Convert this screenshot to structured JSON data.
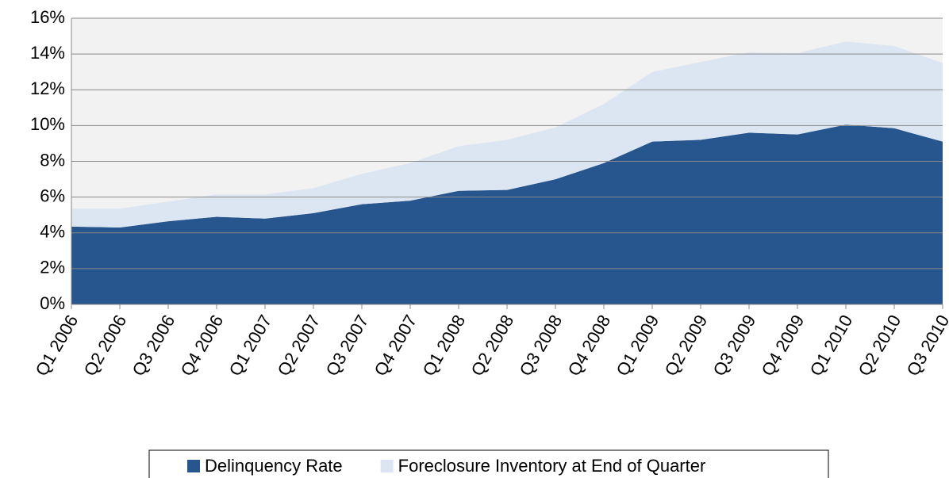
{
  "chart_data": {
    "type": "stacked_area",
    "categories": [
      "Q1 2006",
      "Q2 2006",
      "Q3 2006",
      "Q4 2006",
      "Q1 2007",
      "Q2 2007",
      "Q3 2007",
      "Q4 2007",
      "Q1 2008",
      "Q2 2008",
      "Q3 2008",
      "Q4 2008",
      "Q1 2009",
      "Q2 2009",
      "Q3 2009",
      "Q4 2009",
      "Q1 2010",
      "Q2 2010",
      "Q3 2010"
    ],
    "series": [
      {
        "name": "Delinquency Rate",
        "color": "#27568f",
        "values": [
          4.35,
          4.3,
          4.65,
          4.9,
          4.8,
          5.1,
          5.6,
          5.8,
          6.35,
          6.4,
          7.0,
          7.9,
          9.1,
          9.2,
          9.6,
          9.5,
          10.05,
          9.85,
          9.1
        ]
      },
      {
        "name": "Foreclosure Inventory at End of Quarter",
        "color": "#dce6f2",
        "values": [
          1.0,
          1.05,
          1.1,
          1.25,
          1.35,
          1.4,
          1.7,
          2.1,
          2.5,
          2.8,
          2.9,
          3.3,
          3.9,
          4.35,
          4.5,
          4.55,
          4.65,
          4.6,
          4.4
        ]
      }
    ],
    "ylim": [
      0,
      16
    ],
    "yticks": [
      {
        "value": 0,
        "label": "0%"
      },
      {
        "value": 2,
        "label": "2%"
      },
      {
        "value": 4,
        "label": "4%"
      },
      {
        "value": 6,
        "label": "6%"
      },
      {
        "value": 8,
        "label": "8%"
      },
      {
        "value": 10,
        "label": "10%"
      },
      {
        "value": 12,
        "label": "12%"
      },
      {
        "value": 14,
        "label": "14%"
      },
      {
        "value": 16,
        "label": "16%"
      }
    ],
    "grid": true,
    "legend": "bottom"
  }
}
